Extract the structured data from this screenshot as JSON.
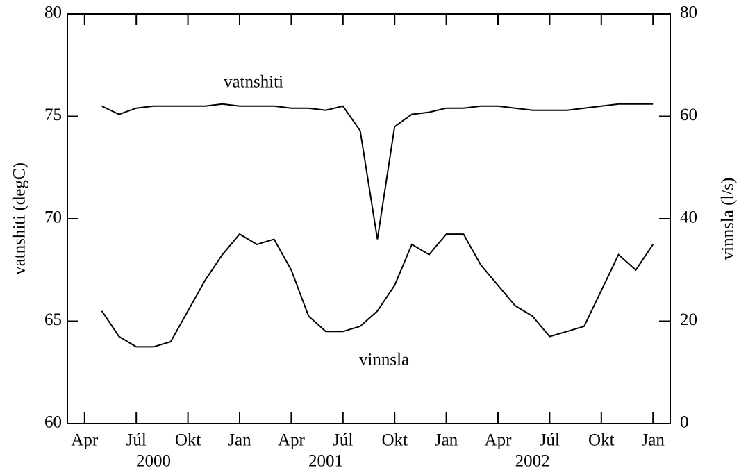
{
  "chart_data": {
    "type": "line",
    "x": [
      "2000-05",
      "2000-06",
      "2000-07",
      "2000-08",
      "2000-09",
      "2000-10",
      "2000-11",
      "2000-12",
      "2001-01",
      "2001-02",
      "2001-03",
      "2001-04",
      "2001-05",
      "2001-06",
      "2001-07",
      "2001-08",
      "2001-09",
      "2001-10",
      "2001-11",
      "2001-12",
      "2002-01",
      "2002-02",
      "2002-03",
      "2002-04",
      "2002-05",
      "2002-06",
      "2002-07",
      "2002-08",
      "2002-09",
      "2002-10",
      "2002-11",
      "2002-12",
      "2003-01"
    ],
    "series": [
      {
        "name": "vatnshiti",
        "color": "#000000",
        "axis": "y",
        "values": [
          75.5,
          75.1,
          75.4,
          75.5,
          75.5,
          75.5,
          75.5,
          75.6,
          75.5,
          75.5,
          75.5,
          75.4,
          75.4,
          75.3,
          75.5,
          74.3,
          69.0,
          74.5,
          75.1,
          75.2,
          75.4,
          75.4,
          75.5,
          75.5,
          75.4,
          75.3,
          75.3,
          75.3,
          75.4,
          75.5,
          75.6,
          75.6,
          75.6
        ]
      },
      {
        "name": "vinnsla",
        "color": "#000000",
        "axis": "y2",
        "values": [
          22,
          17,
          15,
          15,
          16,
          22,
          28,
          33,
          37,
          35,
          36,
          30,
          21,
          18,
          18,
          19,
          22,
          27,
          35,
          33,
          37,
          37,
          31,
          27,
          23,
          21,
          17,
          18,
          19,
          26,
          33,
          30,
          35
        ]
      }
    ],
    "ylabel": "vatnshiti (degC)",
    "y2label": "vinnsla (l/s)",
    "ylim": [
      60,
      80
    ],
    "yticks": [
      60,
      65,
      70,
      75,
      80
    ],
    "y2lim": [
      0,
      80
    ],
    "y2ticks": [
      0,
      20,
      40,
      60,
      80
    ],
    "xlim": [
      "2000-03",
      "2003-02"
    ],
    "xticks": [
      {
        "value": "2000-04",
        "label": "Apr"
      },
      {
        "value": "2000-07",
        "label": "Júl"
      },
      {
        "value": "2000-10",
        "label": "Okt"
      },
      {
        "value": "2001-01",
        "label": "Jan"
      },
      {
        "value": "2001-04",
        "label": "Apr"
      },
      {
        "value": "2001-07",
        "label": "Júl"
      },
      {
        "value": "2001-10",
        "label": "Okt"
      },
      {
        "value": "2002-01",
        "label": "Jan"
      },
      {
        "value": "2002-04",
        "label": "Apr"
      },
      {
        "value": "2002-07",
        "label": "Júl"
      },
      {
        "value": "2002-10",
        "label": "Okt"
      },
      {
        "value": "2003-01",
        "label": "Jan"
      }
    ],
    "year_labels": [
      {
        "value": "2000-08",
        "label": "2000"
      },
      {
        "value": "2001-06",
        "label": "2001"
      },
      {
        "value": "2002-06",
        "label": "2002"
      }
    ],
    "grid": false
  }
}
